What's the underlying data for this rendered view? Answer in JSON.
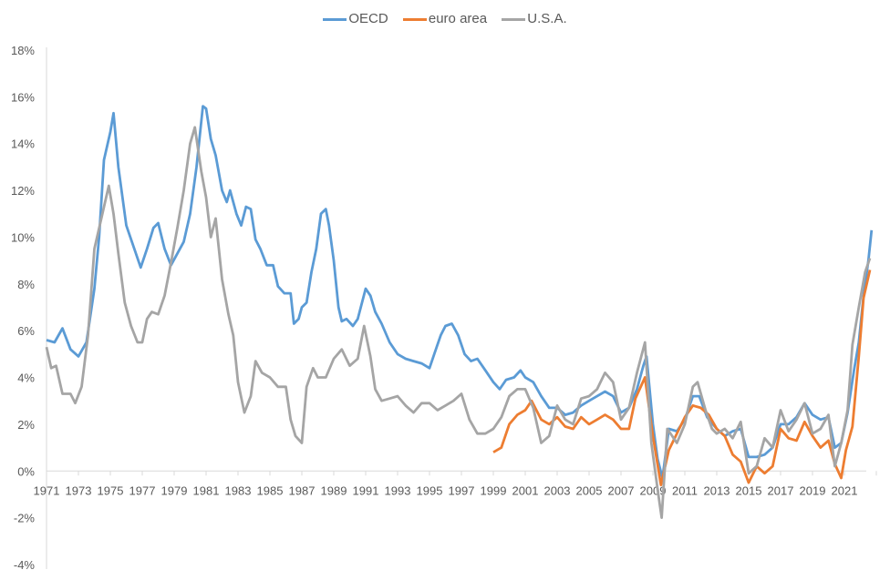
{
  "chart_data": {
    "type": "line",
    "title": "",
    "xlabel": "",
    "ylabel": "",
    "xlim": [
      1971,
      2022.8
    ],
    "ylim": [
      -4,
      18
    ],
    "y_ticks": [
      "-4%",
      "-2%",
      "0%",
      "2%",
      "4%",
      "6%",
      "8%",
      "10%",
      "12%",
      "14%",
      "16%",
      "18%"
    ],
    "y_tick_values": [
      -4,
      -2,
      0,
      2,
      4,
      6,
      8,
      10,
      12,
      14,
      16,
      18
    ],
    "x_ticks": [
      "1971",
      "1973",
      "1975",
      "1977",
      "1979",
      "1981",
      "1983",
      "1985",
      "1987",
      "1989",
      "1991",
      "1993",
      "1995",
      "1997",
      "1999",
      "2001",
      "2003",
      "2005",
      "2007",
      "2009",
      "2011",
      "2013",
      "2015",
      "2017",
      "2019",
      "2021"
    ],
    "grid": false,
    "legend_position": "top-center",
    "series": [
      {
        "name": "OECD",
        "color": "#5B9BD5",
        "points": [
          [
            1971,
            5.6
          ],
          [
            1971.5,
            5.5
          ],
          [
            1972,
            6.1
          ],
          [
            1972.5,
            5.2
          ],
          [
            1973,
            4.9
          ],
          [
            1973.5,
            5.5
          ],
          [
            1974,
            7.8
          ],
          [
            1974.3,
            10
          ],
          [
            1974.6,
            13.3
          ],
          [
            1975,
            14.5
          ],
          [
            1975.2,
            15.3
          ],
          [
            1975.5,
            13
          ],
          [
            1976,
            10.5
          ],
          [
            1976.5,
            9.5
          ],
          [
            1976.9,
            8.7
          ],
          [
            1977.3,
            9.5
          ],
          [
            1977.7,
            10.4
          ],
          [
            1978,
            10.6
          ],
          [
            1978.4,
            9.5
          ],
          [
            1978.8,
            8.8
          ],
          [
            1979.2,
            9.3
          ],
          [
            1979.6,
            9.8
          ],
          [
            1980,
            11
          ],
          [
            1980.4,
            13
          ],
          [
            1980.8,
            15.6
          ],
          [
            1981,
            15.5
          ],
          [
            1981.3,
            14.2
          ],
          [
            1981.6,
            13.5
          ],
          [
            1982,
            12
          ],
          [
            1982.3,
            11.5
          ],
          [
            1982.5,
            12
          ],
          [
            1982.9,
            11
          ],
          [
            1983.2,
            10.5
          ],
          [
            1983.5,
            11.3
          ],
          [
            1983.8,
            11.2
          ],
          [
            1984.1,
            9.9
          ],
          [
            1984.4,
            9.5
          ],
          [
            1984.8,
            8.8
          ],
          [
            1985.2,
            8.8
          ],
          [
            1985.5,
            7.9
          ],
          [
            1985.9,
            7.6
          ],
          [
            1986.3,
            7.6
          ],
          [
            1986.5,
            6.3
          ],
          [
            1986.8,
            6.5
          ],
          [
            1987,
            7
          ],
          [
            1987.3,
            7.2
          ],
          [
            1987.6,
            8.5
          ],
          [
            1987.9,
            9.5
          ],
          [
            1988.2,
            11
          ],
          [
            1988.5,
            11.2
          ],
          [
            1988.7,
            10.5
          ],
          [
            1989,
            9
          ],
          [
            1989.3,
            7
          ],
          [
            1989.5,
            6.4
          ],
          [
            1989.8,
            6.5
          ],
          [
            1990.2,
            6.2
          ],
          [
            1990.5,
            6.5
          ],
          [
            1991,
            7.8
          ],
          [
            1991.3,
            7.5
          ],
          [
            1991.6,
            6.8
          ],
          [
            1992,
            6.3
          ],
          [
            1992.5,
            5.5
          ],
          [
            1993,
            5
          ],
          [
            1993.5,
            4.8
          ],
          [
            1994,
            4.7
          ],
          [
            1994.5,
            4.6
          ],
          [
            1995,
            4.4
          ],
          [
            1995.3,
            5
          ],
          [
            1995.7,
            5.8
          ],
          [
            1996,
            6.2
          ],
          [
            1996.4,
            6.3
          ],
          [
            1996.8,
            5.8
          ],
          [
            1997.2,
            5
          ],
          [
            1997.6,
            4.7
          ],
          [
            1998,
            4.8
          ],
          [
            1998.5,
            4.3
          ],
          [
            1999,
            3.8
          ],
          [
            1999.4,
            3.5
          ],
          [
            1999.8,
            3.9
          ],
          [
            2000.3,
            4
          ],
          [
            2000.7,
            4.3
          ],
          [
            2001,
            4
          ],
          [
            2001.5,
            3.8
          ],
          [
            2002,
            3.2
          ],
          [
            2002.5,
            2.7
          ],
          [
            2003,
            2.7
          ],
          [
            2003.5,
            2.4
          ],
          [
            2004,
            2.5
          ],
          [
            2004.5,
            2.8
          ],
          [
            2005,
            3
          ],
          [
            2005.5,
            3.2
          ],
          [
            2006,
            3.4
          ],
          [
            2006.5,
            3.2
          ],
          [
            2007,
            2.5
          ],
          [
            2007.5,
            2.7
          ],
          [
            2008,
            3.5
          ],
          [
            2008.4,
            4.5
          ],
          [
            2008.6,
            4.9
          ],
          [
            2009,
            2
          ],
          [
            2009.3,
            0.5
          ],
          [
            2009.6,
            -0.3
          ],
          [
            2010,
            1.8
          ],
          [
            2010.5,
            1.7
          ],
          [
            2011,
            2.2
          ],
          [
            2011.5,
            3.2
          ],
          [
            2011.9,
            3.2
          ],
          [
            2012.4,
            2.3
          ],
          [
            2013,
            1.8
          ],
          [
            2013.5,
            1.5
          ],
          [
            2014,
            1.7
          ],
          [
            2014.5,
            1.8
          ],
          [
            2015,
            0.6
          ],
          [
            2015.5,
            0.6
          ],
          [
            2016,
            0.7
          ],
          [
            2016.5,
            1
          ],
          [
            2017,
            2
          ],
          [
            2017.5,
            2
          ],
          [
            2018,
            2.3
          ],
          [
            2018.5,
            2.9
          ],
          [
            2019,
            2.4
          ],
          [
            2019.5,
            2.2
          ],
          [
            2020,
            2.3
          ],
          [
            2020.4,
            1
          ],
          [
            2020.8,
            1.2
          ],
          [
            2021.2,
            2.5
          ],
          [
            2021.6,
            4.3
          ],
          [
            2021.9,
            5.5
          ],
          [
            2022.2,
            7.5
          ],
          [
            2022.5,
            9
          ],
          [
            2022.7,
            10.3
          ]
        ]
      },
      {
        "name": "euro area",
        "color": "#ED7D31",
        "points": [
          [
            1999,
            0.8
          ],
          [
            1999.5,
            1
          ],
          [
            2000,
            2
          ],
          [
            2000.5,
            2.4
          ],
          [
            2001,
            2.6
          ],
          [
            2001.4,
            3
          ],
          [
            2002,
            2.2
          ],
          [
            2002.5,
            2
          ],
          [
            2003,
            2.3
          ],
          [
            2003.5,
            1.9
          ],
          [
            2004,
            1.8
          ],
          [
            2004.5,
            2.3
          ],
          [
            2005,
            2
          ],
          [
            2005.5,
            2.2
          ],
          [
            2006,
            2.4
          ],
          [
            2006.5,
            2.2
          ],
          [
            2007,
            1.8
          ],
          [
            2007.5,
            1.8
          ],
          [
            2007.9,
            3.1
          ],
          [
            2008.5,
            4
          ],
          [
            2009,
            1.5
          ],
          [
            2009.5,
            -0.6
          ],
          [
            2010,
            0.9
          ],
          [
            2010.5,
            1.6
          ],
          [
            2011,
            2.3
          ],
          [
            2011.5,
            2.8
          ],
          [
            2012,
            2.7
          ],
          [
            2012.5,
            2.4
          ],
          [
            2013,
            1.8
          ],
          [
            2013.5,
            1.5
          ],
          [
            2014,
            0.7
          ],
          [
            2014.5,
            0.4
          ],
          [
            2015,
            -0.5
          ],
          [
            2015.5,
            0.2
          ],
          [
            2016,
            -0.1
          ],
          [
            2016.5,
            0.2
          ],
          [
            2017,
            1.8
          ],
          [
            2017.5,
            1.4
          ],
          [
            2018,
            1.3
          ],
          [
            2018.5,
            2.1
          ],
          [
            2019,
            1.5
          ],
          [
            2019.5,
            1
          ],
          [
            2020,
            1.3
          ],
          [
            2020.4,
            0.3
          ],
          [
            2020.8,
            -0.3
          ],
          [
            2021.1,
            0.9
          ],
          [
            2021.5,
            1.9
          ],
          [
            2021.9,
            4.9
          ],
          [
            2022.2,
            7.4
          ],
          [
            2022.6,
            8.6
          ]
        ]
      },
      {
        "name": "U.S.A.",
        "color": "#A5A5A5",
        "points": [
          [
            1971,
            5.3
          ],
          [
            1971.3,
            4.4
          ],
          [
            1971.6,
            4.5
          ],
          [
            1972,
            3.3
          ],
          [
            1972.5,
            3.3
          ],
          [
            1972.8,
            2.9
          ],
          [
            1973.2,
            3.6
          ],
          [
            1973.6,
            5.8
          ],
          [
            1974,
            9.5
          ],
          [
            1974.5,
            11
          ],
          [
            1974.9,
            12.2
          ],
          [
            1975.2,
            11
          ],
          [
            1975.5,
            9.3
          ],
          [
            1975.9,
            7.2
          ],
          [
            1976.3,
            6.2
          ],
          [
            1976.7,
            5.5
          ],
          [
            1977,
            5.5
          ],
          [
            1977.3,
            6.5
          ],
          [
            1977.6,
            6.8
          ],
          [
            1978,
            6.7
          ],
          [
            1978.4,
            7.5
          ],
          [
            1978.8,
            8.9
          ],
          [
            1979.2,
            10.4
          ],
          [
            1979.6,
            12
          ],
          [
            1980,
            14
          ],
          [
            1980.3,
            14.7
          ],
          [
            1980.7,
            12.8
          ],
          [
            1981,
            11.7
          ],
          [
            1981.3,
            10
          ],
          [
            1981.6,
            10.8
          ],
          [
            1982,
            8.2
          ],
          [
            1982.4,
            6.7
          ],
          [
            1982.7,
            5.8
          ],
          [
            1983,
            3.8
          ],
          [
            1983.4,
            2.5
          ],
          [
            1983.8,
            3.2
          ],
          [
            1984.1,
            4.7
          ],
          [
            1984.5,
            4.2
          ],
          [
            1985,
            4
          ],
          [
            1985.5,
            3.6
          ],
          [
            1986,
            3.6
          ],
          [
            1986.3,
            2.2
          ],
          [
            1986.6,
            1.5
          ],
          [
            1987,
            1.2
          ],
          [
            1987.3,
            3.6
          ],
          [
            1987.7,
            4.4
          ],
          [
            1988,
            4
          ],
          [
            1988.5,
            4
          ],
          [
            1989,
            4.8
          ],
          [
            1989.5,
            5.2
          ],
          [
            1990,
            4.5
          ],
          [
            1990.5,
            4.8
          ],
          [
            1990.9,
            6.2
          ],
          [
            1991.3,
            4.9
          ],
          [
            1991.6,
            3.5
          ],
          [
            1992,
            3
          ],
          [
            1992.5,
            3.1
          ],
          [
            1993,
            3.2
          ],
          [
            1993.5,
            2.8
          ],
          [
            1994,
            2.5
          ],
          [
            1994.5,
            2.9
          ],
          [
            1995,
            2.9
          ],
          [
            1995.5,
            2.6
          ],
          [
            1996,
            2.8
          ],
          [
            1996.5,
            3
          ],
          [
            1997,
            3.3
          ],
          [
            1997.5,
            2.2
          ],
          [
            1998,
            1.6
          ],
          [
            1998.5,
            1.6
          ],
          [
            1999,
            1.8
          ],
          [
            1999.5,
            2.3
          ],
          [
            2000,
            3.2
          ],
          [
            2000.5,
            3.5
          ],
          [
            2001,
            3.5
          ],
          [
            2001.5,
            2.7
          ],
          [
            2002,
            1.2
          ],
          [
            2002.5,
            1.5
          ],
          [
            2003,
            2.8
          ],
          [
            2003.5,
            2.2
          ],
          [
            2004,
            2
          ],
          [
            2004.5,
            3.1
          ],
          [
            2005,
            3.2
          ],
          [
            2005.5,
            3.5
          ],
          [
            2006,
            4.2
          ],
          [
            2006.5,
            3.8
          ],
          [
            2007,
            2.2
          ],
          [
            2007.5,
            2.7
          ],
          [
            2008,
            4.2
          ],
          [
            2008.5,
            5.5
          ],
          [
            2008.9,
            1.2
          ],
          [
            2009.3,
            -0.8
          ],
          [
            2009.55,
            -2.0
          ],
          [
            2009.9,
            1.8
          ],
          [
            2010.5,
            1.2
          ],
          [
            2011,
            2
          ],
          [
            2011.5,
            3.6
          ],
          [
            2011.8,
            3.8
          ],
          [
            2012.3,
            2.6
          ],
          [
            2012.7,
            1.8
          ],
          [
            2013,
            1.6
          ],
          [
            2013.5,
            1.8
          ],
          [
            2014,
            1.4
          ],
          [
            2014.5,
            2.1
          ],
          [
            2015,
            -0.1
          ],
          [
            2015.5,
            0.2
          ],
          [
            2016,
            1.4
          ],
          [
            2016.5,
            1
          ],
          [
            2017,
            2.6
          ],
          [
            2017.5,
            1.7
          ],
          [
            2018,
            2.2
          ],
          [
            2018.5,
            2.9
          ],
          [
            2019,
            1.6
          ],
          [
            2019.5,
            1.8
          ],
          [
            2020,
            2.4
          ],
          [
            2020.4,
            0.2
          ],
          [
            2020.8,
            1.2
          ],
          [
            2021.2,
            2.6
          ],
          [
            2021.5,
            5.4
          ],
          [
            2021.9,
            7
          ],
          [
            2022.3,
            8.5
          ],
          [
            2022.6,
            9.1
          ]
        ]
      }
    ]
  }
}
